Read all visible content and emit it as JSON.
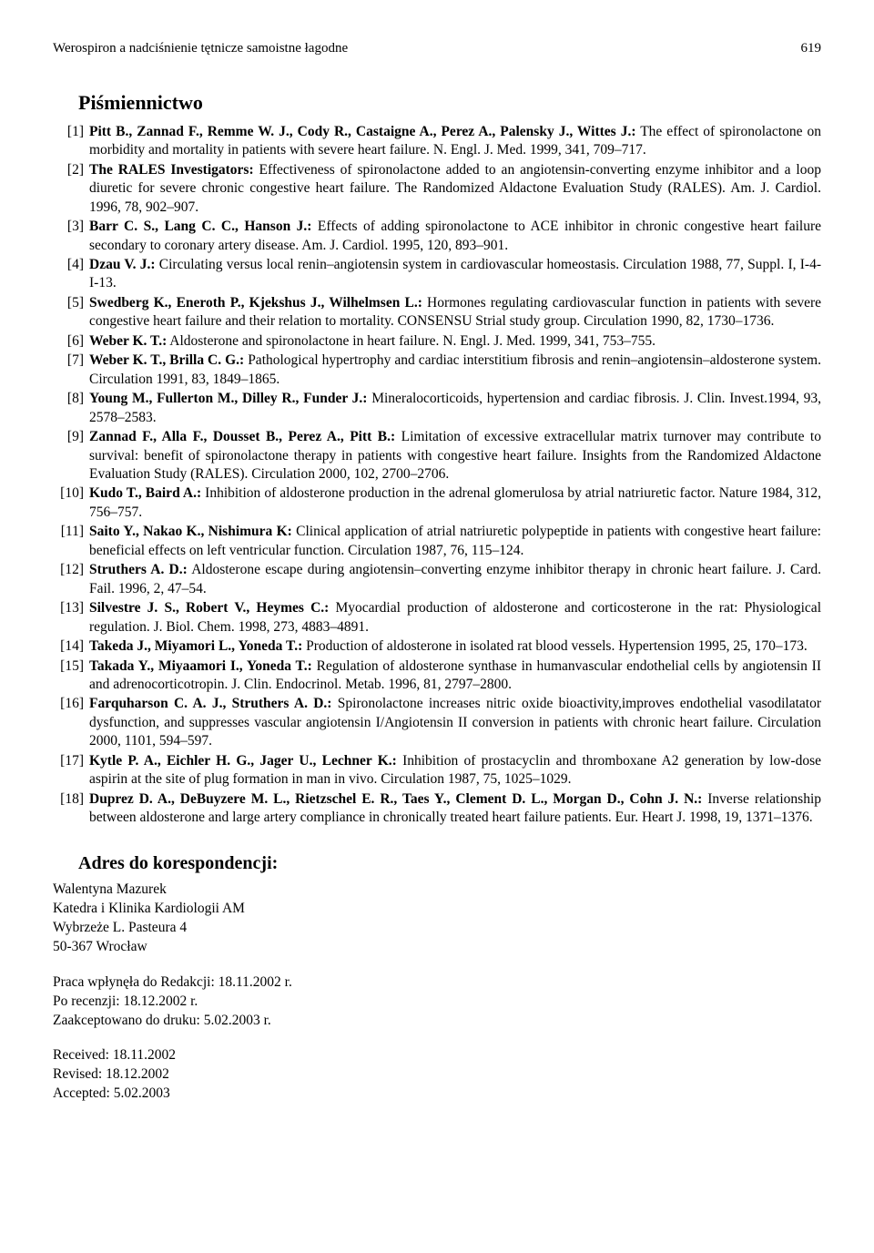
{
  "header": {
    "running_title": "Werospiron a nadciśnienie tętnicze samoistne łagodne",
    "page_number": "619"
  },
  "bibliography_title": "Piśmiennictwo",
  "refs": [
    {
      "num": "[1]",
      "authors": "Pitt B., Zannad F., Remme W. J., Cody R., Castaigne A., Perez A., Palensky J., Wittes J.:",
      "text": " The effect of spironolactone on morbidity and mortality in patients with severe heart failure. N. Engl. J. Med. 1999, 341, 709–717."
    },
    {
      "num": "[2]",
      "authors": "The RALES Investigators:",
      "text": " Effectiveness of spironolactone added to an angiotensin-converting enzyme inhibitor and a loop diuretic for severe chronic congestive heart failure. The Randomized Aldactone Evaluation Study (RALES). Am. J. Cardiol. 1996, 78, 902–907."
    },
    {
      "num": "[3]",
      "authors": "Barr C. S., Lang C. C., Hanson J.:",
      "text": " Effects of adding spironolactone to ACE inhibitor in chronic congestive heart failure secondary to coronary artery disease. Am. J. Cardiol. 1995, 120, 893–901."
    },
    {
      "num": "[4]",
      "authors": "Dzau V. J.:",
      "text": " Circulating versus local renin–angiotensin system in cardiovascular homeostasis. Circulation 1988, 77, Suppl. I, I-4-I-13."
    },
    {
      "num": "[5]",
      "authors": "Swedberg K., Eneroth P., Kjekshus J., Wilhelmsen L.:",
      "text": " Hormones regulating cardiovascular function in patients with severe congestive heart failure and their relation to mortality. CONSENSU Strial study group. Circulation 1990, 82, 1730–1736."
    },
    {
      "num": "[6]",
      "authors": "Weber K. T.:",
      "text": " Aldosterone and spironolactone in heart failure. N. Engl. J. Med. 1999, 341, 753–755."
    },
    {
      "num": "[7]",
      "authors": "Weber K. T., Brilla C. G.:",
      "text": " Pathological hypertrophy and cardiac interstitium fibrosis and renin–angiotensin–aldosterone system. Circulation 1991, 83, 1849–1865."
    },
    {
      "num": "[8]",
      "authors": "Young M., Fullerton M., Dilley R., Funder J.:",
      "text": " Mineralocorticoids, hypertension and cardiac fibrosis. J. Clin. Invest.1994, 93, 2578–2583."
    },
    {
      "num": "[9]",
      "authors": "Zannad F., Alla F., Dousset B., Perez A., Pitt B.:",
      "text": " Limitation of excessive extracellular matrix turnover may contribute to survival: benefit of spironolactone therapy in patients with congestive heart failure. Insights from the Randomized Aldactone Evaluation Study (RALES). Circulation 2000, 102, 2700–2706."
    },
    {
      "num": "[10]",
      "authors": "Kudo T., Baird A.:",
      "text": " Inhibition of aldosterone production in the adrenal glomerulosa by atrial natriuretic factor. Nature 1984, 312, 756–757."
    },
    {
      "num": "[11]",
      "authors": "Saito Y., Nakao K., Nishimura K:",
      "text": " Clinical application of atrial natriuretic polypeptide in patients with congestive heart failure: beneficial effects on left ventricular function. Circulation 1987, 76, 115–124."
    },
    {
      "num": "[12]",
      "authors": "Struthers A. D.:",
      "text": " Aldosterone escape during angiotensin–converting enzyme inhibitor therapy in chronic heart failure. J. Card. Fail. 1996, 2, 47–54."
    },
    {
      "num": "[13]",
      "authors": "Silvestre J. S., Robert V., Heymes C.:",
      "text": " Myocardial production of aldosterone and corticosterone in the rat: Physiological regulation. J. Biol. Chem. 1998, 273, 4883–4891."
    },
    {
      "num": "[14]",
      "authors": "Takeda J., Miyamori L., Yoneda T.:",
      "text": " Production of aldosterone in isolated rat blood vessels. Hypertension 1995, 25, 170–173."
    },
    {
      "num": "[15]",
      "authors": "Takada Y., Miyaamori I., Yoneda T.:",
      "text": " Regulation of aldosterone synthase in humanvascular endothelial cells by angiotensin II and adrenocorticotropin. J. Clin. Endocrinol. Metab. 1996, 81, 2797–2800."
    },
    {
      "num": "[16]",
      "authors": "Farquharson C. A. J., Struthers A. D.:",
      "text": " Spironolactone increases nitric oxide bioactivity,improves endothelial vasodilatator dysfunction, and suppresses vascular angiotensin I/Angiotensin II conversion in patients with chronic heart failure. Circulation 2000, 1101, 594–597."
    },
    {
      "num": "[17]",
      "authors": "Kytle P. A., Eichler H. G., Jager U., Lechner K.:",
      "text": " Inhibition of prostacyclin and thromboxane A2 generation by low-dose aspirin at the site of plug formation in man in vivo. Circulation 1987, 75, 1025–1029."
    },
    {
      "num": "[18]",
      "authors": "Duprez D. A., DeBuyzere M. L., Rietzschel E. R., Taes Y., Clement D. L., Morgan D., Cohn J. N.:",
      "text": " Inverse relationship between aldosterone and large artery compliance in chronically treated heart failure patients. Eur. Heart J. 1998, 19, 1371–1376."
    }
  ],
  "corr_title": "Adres do korespondencji:",
  "corr": {
    "name": "Walentyna Mazurek",
    "dept": "Katedra i Klinika Kardiologii AM",
    "street": "Wybrzeże L. Pasteura 4",
    "city": "50-367 Wrocław"
  },
  "dates_pl": {
    "submitted": "Praca wpłynęła do Redakcji: 18.11.2002 r.",
    "review": "Po recenzji: 18.12.2002 r.",
    "accepted": "Zaakceptowano do druku: 5.02.2003 r."
  },
  "dates_en": {
    "received": "Received: 18.11.2002",
    "revised": "Revised: 18.12.2002",
    "accepted": "Accepted: 5.02.2003"
  }
}
